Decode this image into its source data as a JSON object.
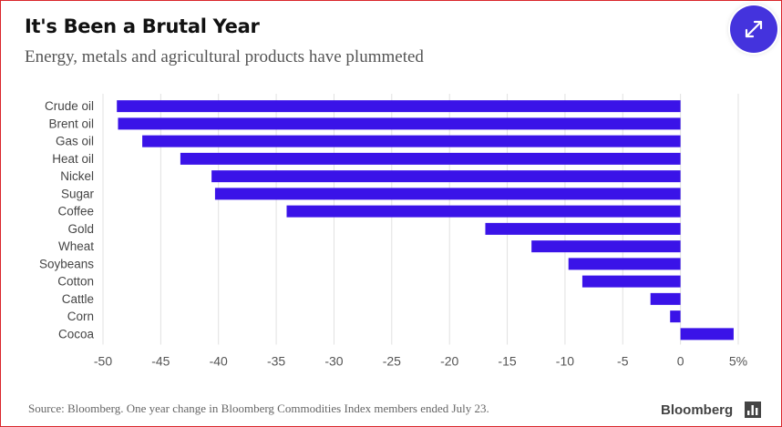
{
  "header": {
    "title": "It's Been a Brutal Year",
    "subtitle": "Energy, metals and agricultural products have plummeted"
  },
  "footer": {
    "source": "Source: Bloomberg. One year change in Bloomberg Commodities Index members ended July 23.",
    "brand": "Bloomberg"
  },
  "icons": {
    "expand": "expand-arrows-icon",
    "brand": "bar-chart-logo-icon"
  },
  "colors": {
    "bar": "#3a13e8",
    "accent": "#4433dd",
    "frame": "#d9262b"
  },
  "chart_data": {
    "type": "bar",
    "orientation": "horizontal",
    "title": "It's Been a Brutal Year",
    "subtitle": "Energy, metals and agricultural products have plummeted",
    "categories": [
      "Crude oil",
      "Brent oil",
      "Gas oil",
      "Heat oil",
      "Nickel",
      "Sugar",
      "Coffee",
      "Gold",
      "Wheat",
      "Soybeans",
      "Cotton",
      "Cattle",
      "Corn",
      "Cocoa"
    ],
    "values": [
      -48.8,
      -48.7,
      -46.6,
      -43.3,
      -40.6,
      -40.3,
      -34.1,
      -16.9,
      -12.9,
      -9.7,
      -8.5,
      -2.6,
      -0.9,
      4.6
    ],
    "xticks": [
      "-50",
      "-45",
      "-40",
      "-35",
      "-30",
      "-25",
      "-20",
      "-15",
      "-10",
      "-5",
      "0",
      "5%"
    ],
    "xlim": [
      -50,
      5
    ],
    "grid": true
  }
}
